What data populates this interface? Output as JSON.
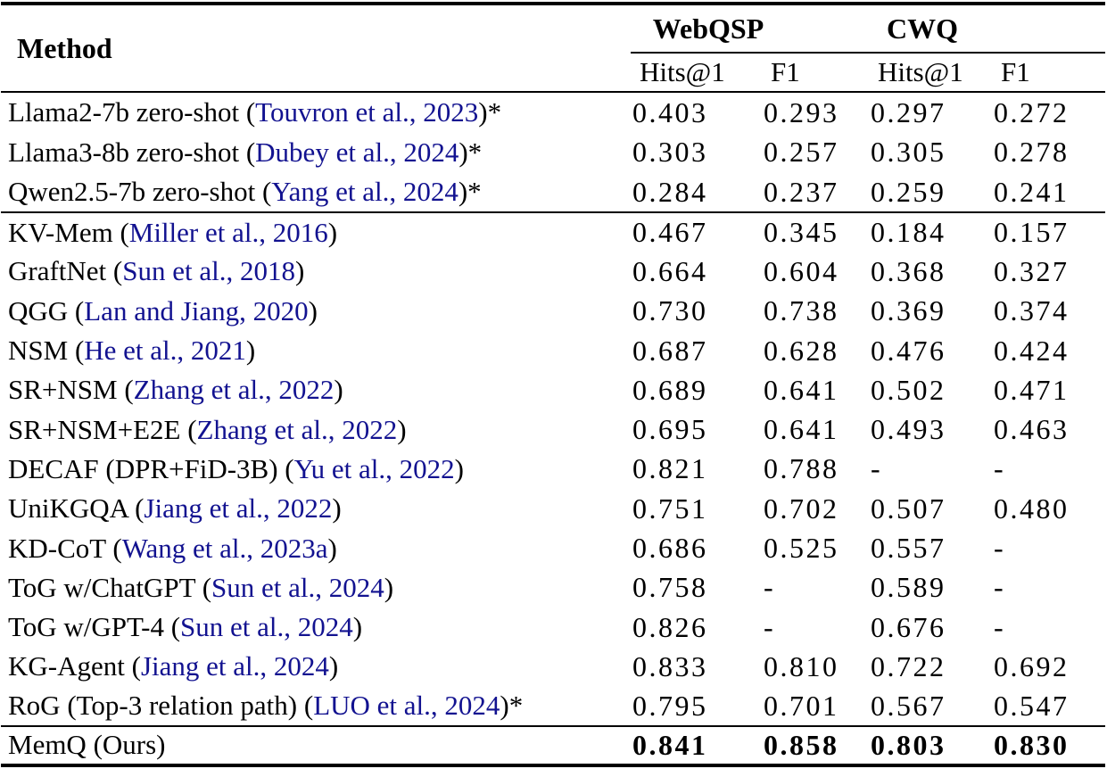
{
  "table": {
    "citation_color": "#121290",
    "method_header": "Method",
    "group_headers": [
      {
        "label": "WebQSP"
      },
      {
        "label": "CWQ"
      }
    ],
    "sub_headers": [
      "Hits@1",
      "F1",
      "Hits@1",
      "F1"
    ],
    "groups": [
      {
        "rows": [
          {
            "prefix": "Llama2-7b zero-shot (",
            "citation": "Touvron et al., 2023",
            "suffix": ")*",
            "values": [
              "0.403",
              "0.293",
              "0.297",
              "0.272"
            ],
            "bold": false
          },
          {
            "prefix": "Llama3-8b zero-shot (",
            "citation": "Dubey et al., 2024",
            "suffix": ")*",
            "values": [
              "0.303",
              "0.257",
              "0.305",
              "0.278"
            ],
            "bold": false
          },
          {
            "prefix": "Qwen2.5-7b zero-shot (",
            "citation": "Yang et al., 2024",
            "suffix": ")*",
            "values": [
              "0.284",
              "0.237",
              "0.259",
              "0.241"
            ],
            "bold": false
          }
        ]
      },
      {
        "rows": [
          {
            "prefix": "KV-Mem (",
            "citation": "Miller et al., 2016",
            "suffix": ")",
            "values": [
              "0.467",
              "0.345",
              "0.184",
              "0.157"
            ],
            "bold": false
          },
          {
            "prefix": "GraftNet (",
            "citation": "Sun et al., 2018",
            "suffix": ")",
            "values": [
              "0.664",
              "0.604",
              "0.368",
              "0.327"
            ],
            "bold": false
          },
          {
            "prefix": "QGG (",
            "citation": "Lan and Jiang, 2020",
            "suffix": ")",
            "values": [
              "0.730",
              "0.738",
              "0.369",
              "0.374"
            ],
            "bold": false
          },
          {
            "prefix": "NSM (",
            "citation": "He et al., 2021",
            "suffix": ")",
            "values": [
              "0.687",
              "0.628",
              "0.476",
              "0.424"
            ],
            "bold": false
          },
          {
            "prefix": "SR+NSM (",
            "citation": "Zhang et al., 2022",
            "suffix": ")",
            "values": [
              "0.689",
              "0.641",
              "0.502",
              "0.471"
            ],
            "bold": false
          },
          {
            "prefix": "SR+NSM+E2E (",
            "citation": "Zhang et al., 2022",
            "suffix": ")",
            "values": [
              "0.695",
              "0.641",
              "0.493",
              "0.463"
            ],
            "bold": false
          },
          {
            "prefix": "DECAF (DPR+FiD-3B) (",
            "citation": "Yu et al., 2022",
            "suffix": ")",
            "values": [
              "0.821",
              "0.788",
              "-",
              "-"
            ],
            "bold": false
          },
          {
            "prefix": "UniKGQA (",
            "citation": "Jiang et al., 2022",
            "suffix": ")",
            "values": [
              "0.751",
              "0.702",
              "0.507",
              "0.480"
            ],
            "bold": false
          },
          {
            "prefix": "KD-CoT (",
            "citation": "Wang et al., 2023a",
            "suffix": ")",
            "values": [
              "0.686",
              "0.525",
              "0.557",
              "-"
            ],
            "bold": false
          },
          {
            "prefix": "ToG w/ChatGPT (",
            "citation": "Sun et al., 2024",
            "suffix": ")",
            "values": [
              "0.758",
              "-",
              "0.589",
              "-"
            ],
            "bold": false
          },
          {
            "prefix": "ToG w/GPT-4 (",
            "citation": "Sun et al., 2024",
            "suffix": ")",
            "values": [
              "0.826",
              "-",
              "0.676",
              "-"
            ],
            "bold": false
          },
          {
            "prefix": "KG-Agent (",
            "citation": "Jiang et al., 2024",
            "suffix": ")",
            "values": [
              "0.833",
              "0.810",
              "0.722",
              "0.692"
            ],
            "bold": false
          },
          {
            "prefix": "RoG (Top-3 relation path) (",
            "citation": "LUO et al., 2024",
            "suffix": ")*",
            "values": [
              "0.795",
              "0.701",
              "0.567",
              "0.547"
            ],
            "bold": false
          }
        ]
      },
      {
        "rows": [
          {
            "prefix": "MemQ (Ours)",
            "citation": "",
            "suffix": "",
            "values": [
              "0.841",
              "0.858",
              "0.803",
              "0.830"
            ],
            "bold": true
          }
        ]
      }
    ]
  }
}
